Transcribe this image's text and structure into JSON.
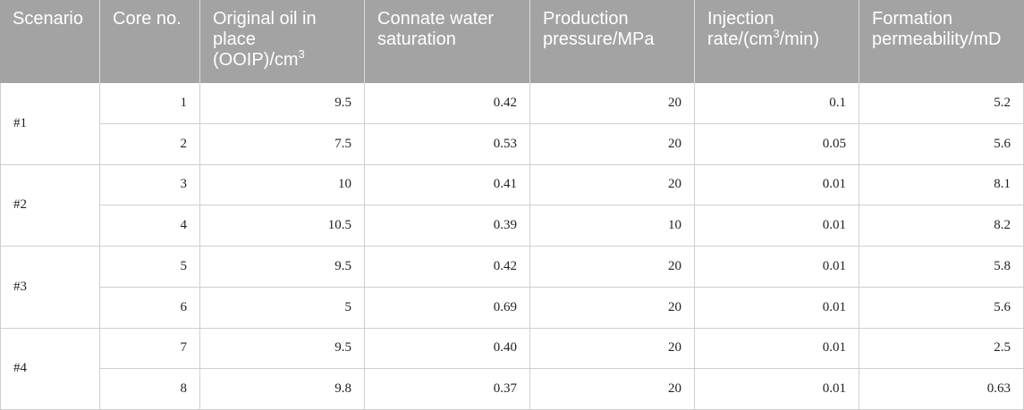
{
  "theme": {
    "header_bg": "#a3a3a3",
    "header_text": "#ffffff",
    "grid_line": "#cfcfcf",
    "body_text": "#222222"
  },
  "table": {
    "headers": {
      "scenario": "Scenario",
      "core": "Core no.",
      "ooip": {
        "line1": "Original oil in",
        "line2": "place",
        "line3": "(OOIP)/cm",
        "sup": "3"
      },
      "connate": {
        "line1": "Connate water",
        "line2": "saturation"
      },
      "pressure": {
        "line1": "Production",
        "line2": "pressure/MPa"
      },
      "injection": {
        "line1": "Injection",
        "line2": "rate/(cm",
        "sup": "3",
        "tail": "/min)"
      },
      "permeability": {
        "line1": "Formation",
        "line2": "permeability/mD"
      }
    },
    "groups": [
      {
        "scenario": "#1",
        "rows": [
          {
            "core": "1",
            "ooip": "9.5",
            "connate": "0.42",
            "pressure": "20",
            "injection": "0.1",
            "permeability": "5.2"
          },
          {
            "core": "2",
            "ooip": "7.5",
            "connate": "0.53",
            "pressure": "20",
            "injection": "0.05",
            "permeability": "5.6"
          }
        ]
      },
      {
        "scenario": "#2",
        "rows": [
          {
            "core": "3",
            "ooip": "10",
            "connate": "0.41",
            "pressure": "20",
            "injection": "0.01",
            "permeability": "8.1"
          },
          {
            "core": "4",
            "ooip": "10.5",
            "connate": "0.39",
            "pressure": "10",
            "injection": "0.01",
            "permeability": "8.2"
          }
        ]
      },
      {
        "scenario": "#3",
        "rows": [
          {
            "core": "5",
            "ooip": "9.5",
            "connate": "0.42",
            "pressure": "20",
            "injection": "0.01",
            "permeability": "5.8"
          },
          {
            "core": "6",
            "ooip": "5",
            "connate": "0.69",
            "pressure": "20",
            "injection": "0.01",
            "permeability": "5.6"
          }
        ]
      },
      {
        "scenario": "#4",
        "rows": [
          {
            "core": "7",
            "ooip": "9.5",
            "connate": "0.40",
            "pressure": "20",
            "injection": "0.01",
            "permeability": "2.5"
          },
          {
            "core": "8",
            "ooip": "9.8",
            "connate": "0.37",
            "pressure": "20",
            "injection": "0.01",
            "permeability": "0.63"
          }
        ]
      }
    ]
  }
}
